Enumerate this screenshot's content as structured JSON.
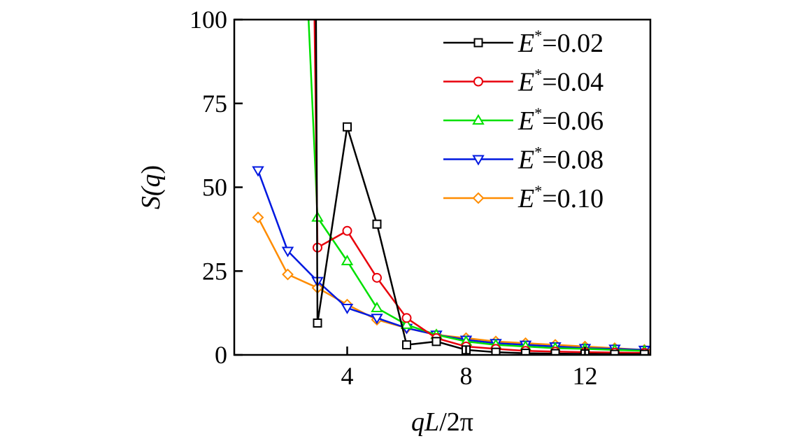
{
  "chart_data": {
    "type": "line",
    "xlabel_parts": [
      "qL",
      "/2π"
    ],
    "ylabel_parts": [
      "S(",
      "q",
      ")"
    ],
    "xlim": [
      0.2,
      14.2
    ],
    "ylim": [
      0,
      100
    ],
    "x_ticks": [
      4,
      8,
      12
    ],
    "y_ticks": [
      0,
      25,
      50,
      75,
      100
    ],
    "grid": false,
    "legend_position": "top-right",
    "series": [
      {
        "name": "E*=0.02",
        "label_var": "E",
        "label_sup": "*",
        "label_value": "=0.02",
        "color": "#000000",
        "marker": "square",
        "x": [
          2.95,
          3.0,
          4,
          5,
          6,
          7,
          8,
          9,
          10,
          11,
          12,
          13,
          14
        ],
        "y": [
          100,
          9.5,
          68,
          39,
          3,
          4,
          1.5,
          0.8,
          0.5,
          0.4,
          0.3,
          0.2,
          0.2
        ]
      },
      {
        "name": "E*=0.04",
        "label_var": "E",
        "label_sup": "*",
        "label_value": "=0.04",
        "color": "#e8000b",
        "marker": "circle",
        "x": [
          2.9,
          3.0,
          4,
          5,
          6,
          7,
          8,
          9,
          10,
          11,
          12,
          13,
          14
        ],
        "y": [
          100,
          32,
          37,
          23,
          11,
          5,
          2.5,
          1.8,
          1.2,
          1,
          0.8,
          0.7,
          0.6
        ]
      },
      {
        "name": "E*=0.06",
        "label_var": "E",
        "label_sup": "*",
        "label_value": "=0.06",
        "color": "#00e000",
        "marker": "triangle-up",
        "x": [
          2.7,
          3,
          4,
          5,
          6,
          7,
          8,
          9,
          10,
          11,
          12,
          13,
          14
        ],
        "y": [
          100,
          41,
          28,
          14,
          9,
          6,
          4,
          3,
          2.5,
          2,
          1.8,
          1.5,
          1.2
        ]
      },
      {
        "name": "E*=0.08",
        "label_var": "E",
        "label_sup": "*",
        "label_value": "=0.08",
        "color": "#0018e0",
        "marker": "triangle-down",
        "x": [
          1,
          2,
          3,
          4,
          5,
          6,
          7,
          8,
          9,
          10,
          11,
          12,
          13,
          14
        ],
        "y": [
          55,
          31,
          22,
          14,
          11,
          8,
          6,
          4.5,
          3.5,
          3,
          2.5,
          2,
          1.8,
          1.5
        ]
      },
      {
        "name": "E*=0.10",
        "label_var": "E",
        "label_sup": "*",
        "label_value": "=0.10",
        "color": "#ff8c00",
        "marker": "diamond",
        "x": [
          1,
          2,
          3,
          4,
          5,
          6,
          7,
          8,
          9,
          10,
          11,
          12,
          13,
          14
        ],
        "y": [
          41,
          24,
          20,
          15,
          10.5,
          8,
          6,
          5,
          4,
          3.5,
          3,
          2.5,
          2,
          1.5
        ]
      }
    ]
  }
}
